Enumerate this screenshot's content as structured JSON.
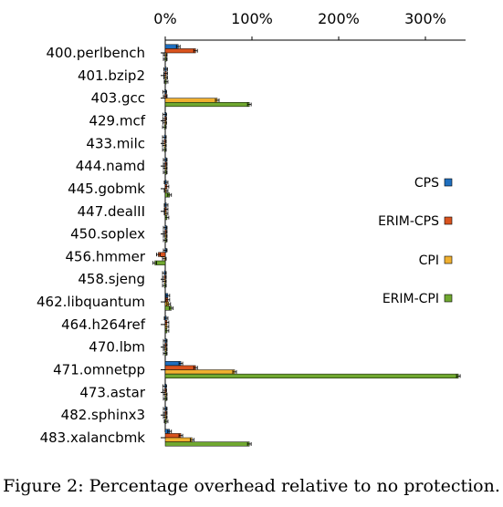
{
  "caption": "Figure 2: Percentage overhead relative to no protection.",
  "chart_data": {
    "type": "bar",
    "orientation": "horizontal",
    "title": "",
    "xlabel": "",
    "ylabel": "",
    "xlim": [
      0,
      350
    ],
    "xticks": [
      0,
      100,
      200,
      300
    ],
    "xtick_labels": [
      "0%",
      "100%",
      "200%",
      "300%"
    ],
    "categories": [
      "400.perlbench",
      "401.bzip2",
      "403.gcc",
      "429.mcf",
      "433.milc",
      "444.namd",
      "445.gobmk",
      "447.dealII",
      "450.soplex",
      "456.hmmer",
      "458.sjeng",
      "462.libquantum",
      "464.h264ref",
      "470.lbm",
      "471.omnetpp",
      "473.astar",
      "482.sphinx3",
      "483.xalancbmk"
    ],
    "series": [
      {
        "name": "CPS",
        "color": "#1f6fbf",
        "values": [
          15,
          0.5,
          -0.5,
          -0.5,
          -1,
          0,
          1,
          1,
          0,
          0,
          -1,
          3,
          1,
          0,
          18,
          -0.5,
          0,
          5
        ]
      },
      {
        "name": "ERIM-CPS",
        "color": "#d9531e",
        "values": [
          35,
          0.5,
          0,
          -0.5,
          -1,
          0,
          2,
          1,
          0,
          -8,
          -1,
          3,
          2,
          0,
          35,
          -0.5,
          0,
          18
        ]
      },
      {
        "name": "CPI",
        "color": "#f0b030",
        "values": [
          0,
          0.5,
          60,
          -0.5,
          -1,
          0,
          1,
          1,
          0,
          -1,
          -1,
          4,
          2,
          0,
          80,
          0,
          0,
          31
        ]
      },
      {
        "name": "ERIM-CPI",
        "color": "#70a830",
        "values": [
          0,
          1,
          97,
          -1,
          -1,
          0,
          5,
          2,
          0,
          -12,
          -1,
          7,
          2,
          0,
          338,
          0,
          1,
          97
        ]
      }
    ],
    "legend": "right",
    "grid": false
  }
}
